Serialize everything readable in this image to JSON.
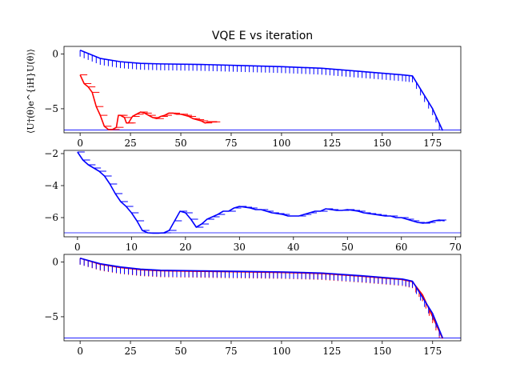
{
  "chart_data": [
    {
      "type": "line",
      "title": "VQE E vs iteration",
      "ylabel": "⟨U†(θ)e^{iH}U(θ)⟩",
      "xlim": [
        -8,
        189
      ],
      "ylim": [
        -7.2,
        0.7
      ],
      "xticks": [
        0,
        25,
        50,
        75,
        100,
        125,
        150,
        175
      ],
      "yticks": [
        0,
        -5
      ],
      "hline": -6.95,
      "series": [
        {
          "color": "#ff0000",
          "x": [
            0,
            2,
            4,
            6,
            8,
            10,
            12,
            14,
            16,
            18,
            19,
            20,
            22,
            23,
            24,
            26,
            28,
            30,
            32,
            34,
            36,
            38,
            40,
            42,
            44,
            46,
            48,
            50,
            52,
            54,
            56,
            58,
            60,
            62,
            64,
            66,
            68
          ],
          "y": [
            -1.9,
            -2.7,
            -3.0,
            -3.5,
            -4.8,
            -5.6,
            -6.6,
            -6.9,
            -6.9,
            -6.7,
            -5.6,
            -5.6,
            -5.8,
            -6.3,
            -6.3,
            -5.7,
            -5.5,
            -5.3,
            -5.4,
            -5.6,
            -5.8,
            -5.9,
            -5.7,
            -5.6,
            -5.4,
            -5.4,
            -5.5,
            -5.5,
            -5.6,
            -5.7,
            -5.9,
            -6.0,
            -6.1,
            -6.3,
            -6.2,
            -6.2,
            -6.2
          ]
        },
        {
          "color": "#0000ff",
          "x": [
            0,
            10,
            20,
            30,
            40,
            60,
            80,
            100,
            120,
            140,
            160,
            165,
            175,
            180
          ],
          "y": [
            0.35,
            -0.4,
            -0.7,
            -0.85,
            -0.9,
            -0.95,
            -1.05,
            -1.15,
            -1.3,
            -1.6,
            -1.9,
            -2.0,
            -5.0,
            -7.0
          ]
        }
      ]
    },
    {
      "type": "line",
      "title": "",
      "xlim": [
        -2.5,
        71
      ],
      "ylim": [
        -7.2,
        -1.8
      ],
      "xticks": [
        0,
        10,
        20,
        30,
        40,
        50,
        60,
        70
      ],
      "yticks": [
        -2,
        -4,
        -6
      ],
      "hline": -6.95,
      "series": [
        {
          "color": "#0000ff",
          "x": [
            0,
            1,
            2,
            3,
            4,
            5,
            6,
            7,
            8,
            9,
            10,
            11,
            12,
            13,
            14,
            15,
            16,
            17,
            18,
            19,
            20,
            21,
            22,
            23,
            24,
            25,
            26,
            27,
            28,
            29,
            30,
            31,
            32,
            33,
            34,
            35,
            36,
            37,
            38,
            39,
            40,
            41,
            42,
            43,
            44,
            45,
            46,
            47,
            48,
            49,
            50,
            51,
            52,
            53,
            54,
            55,
            56,
            57,
            58,
            59,
            60,
            61,
            62,
            63,
            64,
            65,
            66,
            67,
            68
          ],
          "y": [
            -1.9,
            -2.4,
            -2.7,
            -2.9,
            -3.1,
            -3.4,
            -3.9,
            -4.5,
            -5.0,
            -5.3,
            -5.7,
            -6.2,
            -6.8,
            -6.95,
            -6.97,
            -6.97,
            -6.95,
            -6.8,
            -6.2,
            -5.6,
            -5.7,
            -6.1,
            -6.6,
            -6.4,
            -6.1,
            -5.95,
            -5.8,
            -5.6,
            -5.6,
            -5.4,
            -5.3,
            -5.35,
            -5.4,
            -5.5,
            -5.5,
            -5.6,
            -5.7,
            -5.75,
            -5.8,
            -5.9,
            -5.9,
            -5.9,
            -5.8,
            -5.7,
            -5.6,
            -5.6,
            -5.45,
            -5.5,
            -5.55,
            -5.55,
            -5.5,
            -5.55,
            -5.6,
            -5.7,
            -5.75,
            -5.8,
            -5.85,
            -5.9,
            -5.9,
            -6.0,
            -6.0,
            -6.1,
            -6.2,
            -6.3,
            -6.35,
            -6.3,
            -6.2,
            -6.15,
            -6.2
          ]
        }
      ]
    },
    {
      "type": "line",
      "title": "",
      "xlim": [
        -8,
        189
      ],
      "ylim": [
        -7.2,
        0.7
      ],
      "xticks": [
        0,
        25,
        50,
        75,
        100,
        125,
        150,
        175
      ],
      "yticks": [
        0,
        -5
      ],
      "hline": -6.95,
      "series": [
        {
          "color": "#ff0000",
          "x": [
            0,
            10,
            20,
            30,
            40,
            60,
            80,
            100,
            120,
            140,
            160,
            165,
            170,
            175,
            180
          ],
          "y": [
            0.35,
            -0.2,
            -0.5,
            -0.7,
            -0.8,
            -0.85,
            -0.9,
            -0.95,
            -1.05,
            -1.3,
            -1.6,
            -1.8,
            -3.0,
            -5.0,
            -7.0
          ]
        },
        {
          "color": "#0000ff",
          "x": [
            0,
            10,
            20,
            30,
            40,
            60,
            80,
            100,
            120,
            140,
            160,
            165,
            175,
            180
          ],
          "y": [
            0.35,
            -0.15,
            -0.45,
            -0.65,
            -0.75,
            -0.8,
            -0.85,
            -0.9,
            -1.0,
            -1.25,
            -1.55,
            -1.75,
            -4.7,
            -6.95
          ]
        }
      ]
    }
  ]
}
